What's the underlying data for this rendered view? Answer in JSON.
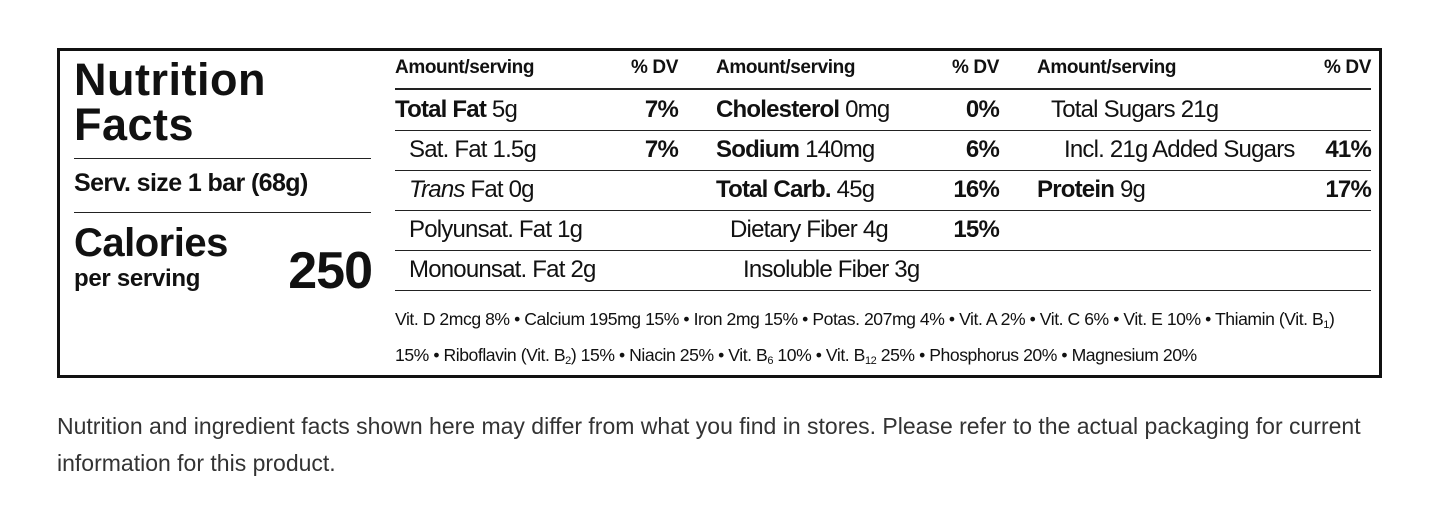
{
  "label": {
    "title": "Nutrition Facts",
    "serving_size": "Serv. size 1 bar (68g)",
    "calories_label": "Calories",
    "calories_sublabel": "per serving",
    "calories": 250,
    "columns": [
      {
        "amount_header": "Amount/serving",
        "dv_header": "% DV",
        "rows": [
          {
            "kind": "main",
            "name": "Total Fat",
            "amount": "5g",
            "dv": "7%"
          },
          {
            "kind": "sub",
            "name": "Sat. Fat",
            "amount": "1.5g",
            "dv": "7%"
          },
          {
            "kind": "sub",
            "name_italic": "Trans",
            "name": "Fat",
            "amount": "0g"
          },
          {
            "kind": "sub",
            "name": "Polyunsat. Fat",
            "amount": "1g"
          },
          {
            "kind": "sub",
            "name": "Monounsat. Fat",
            "amount": "2g"
          }
        ]
      },
      {
        "amount_header": "Amount/serving",
        "dv_header": "% DV",
        "rows": [
          {
            "kind": "main",
            "name": "Cholesterol",
            "amount": "0mg",
            "dv": "0%"
          },
          {
            "kind": "main",
            "name": "Sodium",
            "amount": "140mg",
            "dv": "6%"
          },
          {
            "kind": "main",
            "name": "Total Carb.",
            "amount": "45g",
            "dv": "16%"
          },
          {
            "kind": "sub",
            "name": "Dietary Fiber",
            "amount": "4g",
            "dv": "15%"
          },
          {
            "kind": "subsub",
            "name": "Insoluble Fiber",
            "amount": "3g"
          }
        ]
      },
      {
        "amount_header": "Amount/serving",
        "dv_header": "% DV",
        "rows": [
          {
            "kind": "sub",
            "name": "Total Sugars",
            "amount": "21g"
          },
          {
            "kind": "subsub",
            "name": "Incl. 21g Added Sugars",
            "dv": "41%"
          },
          {
            "kind": "main",
            "name": "Protein",
            "amount": "9g",
            "dv": "17%"
          }
        ]
      }
    ],
    "separator": "•",
    "vitamins": [
      "Vit. D 2mcg 8%",
      "Calcium 195mg 15%",
      "Iron 2mg 15%",
      "Potas. 207mg 4%",
      "Vit. A 2%",
      "Vit. C 6%",
      "Vit. E 10%",
      {
        "text": "Thiamin (Vit. B",
        "sub": "1",
        "after": ") 15%"
      },
      {
        "text": "Riboflavin (Vit. B",
        "sub": "2",
        "after": ") 15%"
      },
      "Niacin 25%",
      {
        "text": "Vit. B",
        "sub": "6",
        "after": " 10%"
      },
      {
        "text": "Vit. B",
        "sub": "12",
        "after": " 25%"
      },
      "Phosphorus 20%",
      "Magnesium 20%"
    ]
  },
  "disclaimer": "Nutrition and ingredient facts shown here may differ from what you find in stores. Please refer to the actual packaging for current information for this product."
}
